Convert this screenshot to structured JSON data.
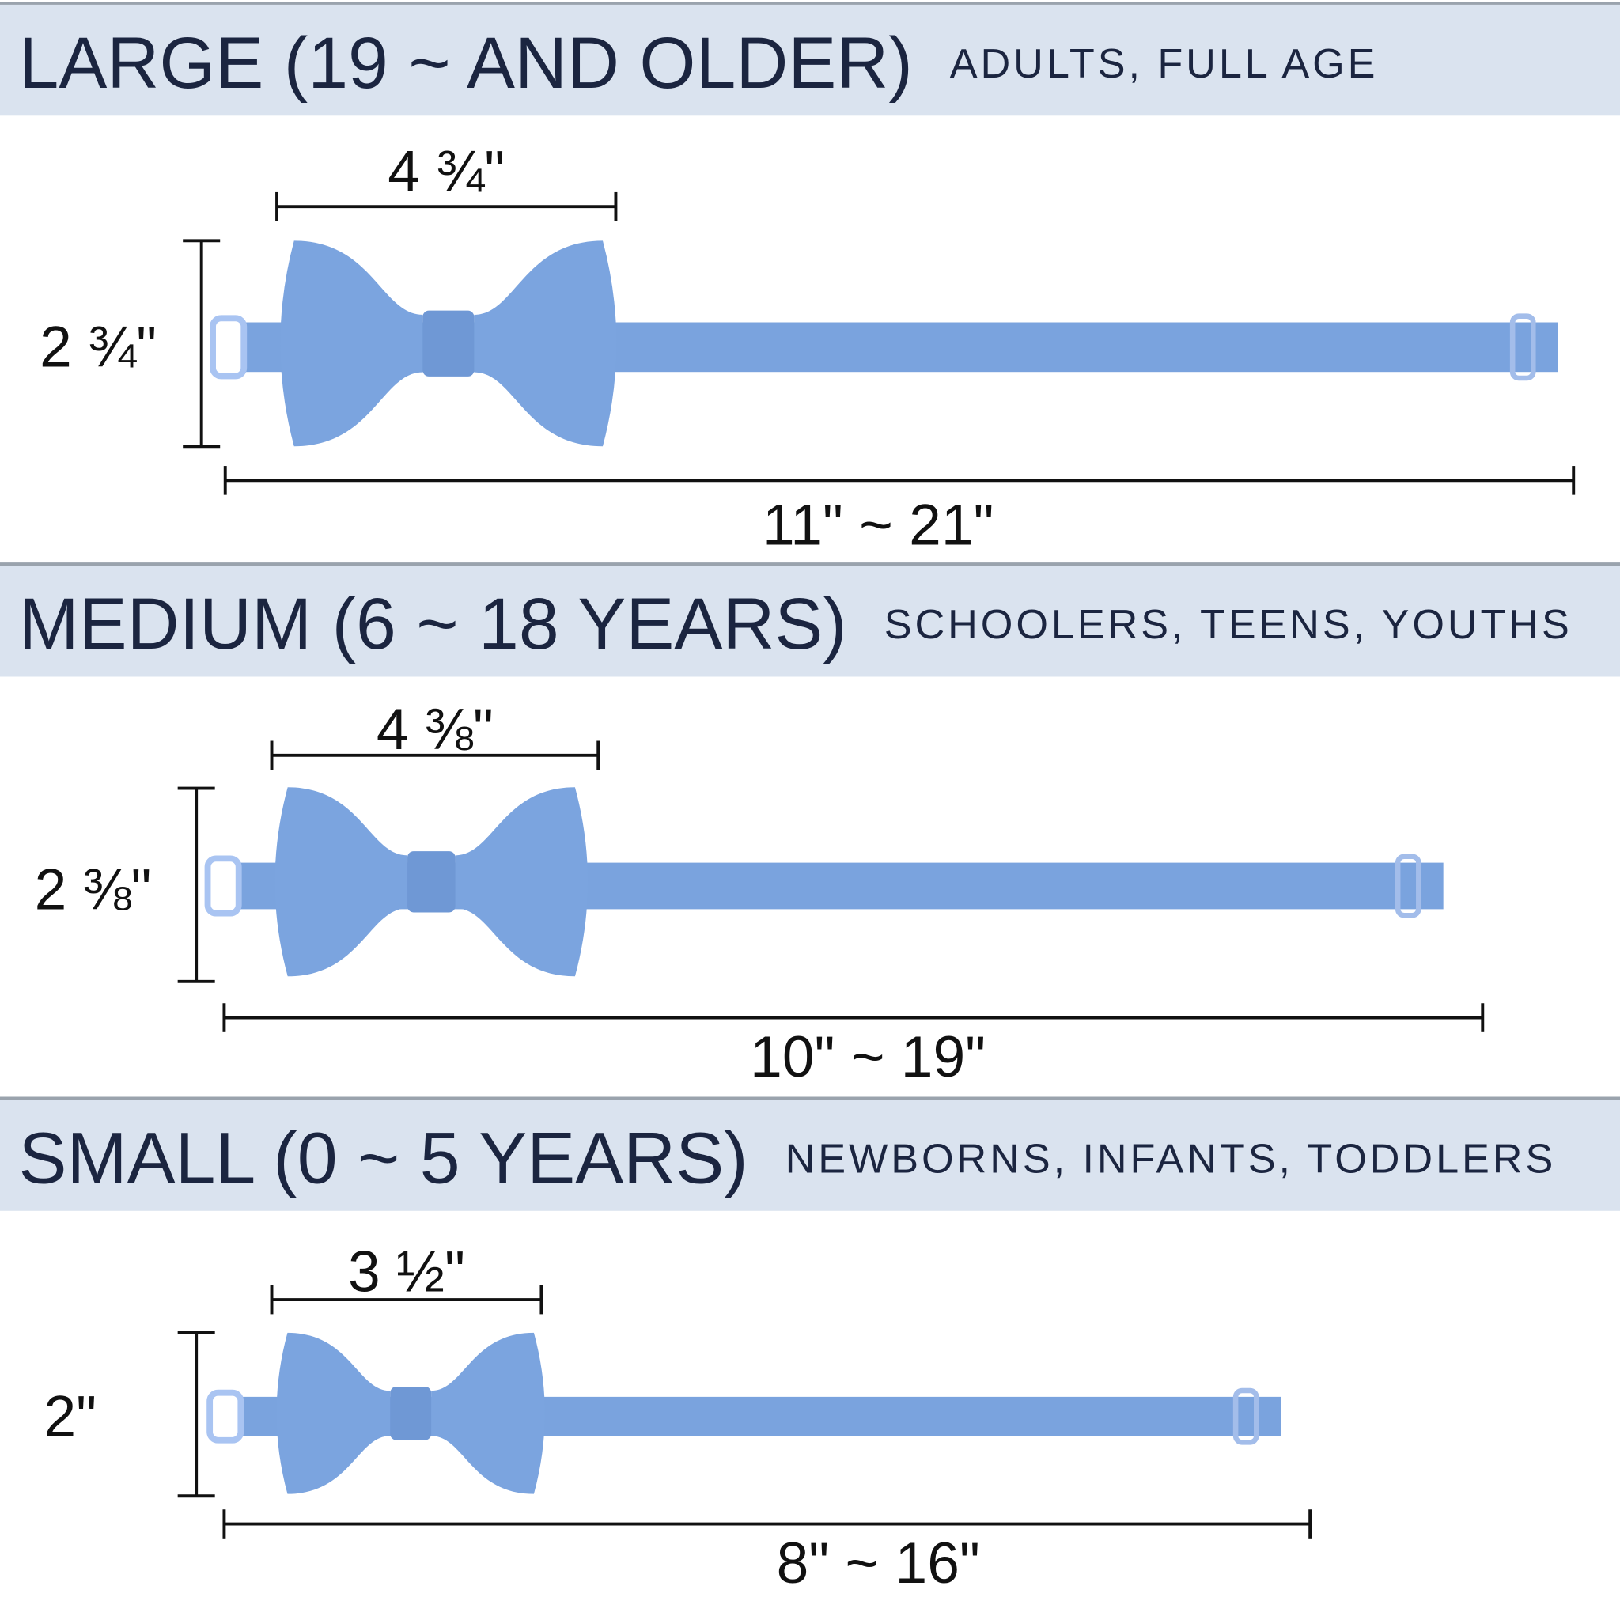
{
  "sections": [
    {
      "title": "LARGE (19 ~ AND OLDER)",
      "subtitle": "ADULTS, FULL AGE",
      "width": "4 ¾\"",
      "height": "2 ¾\"",
      "length": "11\" ~ 21\""
    },
    {
      "title": "MEDIUM (6 ~ 18 YEARS)",
      "subtitle": "SCHOOLERS, TEENS, YOUTHS",
      "width": "4 ⅜\"",
      "height": "2 ⅜\"",
      "length": "10\" ~ 19\""
    },
    {
      "title": "SMALL (0 ~ 5 YEARS)",
      "subtitle": "NEWBORNS, INFANTS, TODDLERS",
      "width": "3 ½\"",
      "height": "2\"",
      "length": "8\" ~ 16\""
    }
  ]
}
